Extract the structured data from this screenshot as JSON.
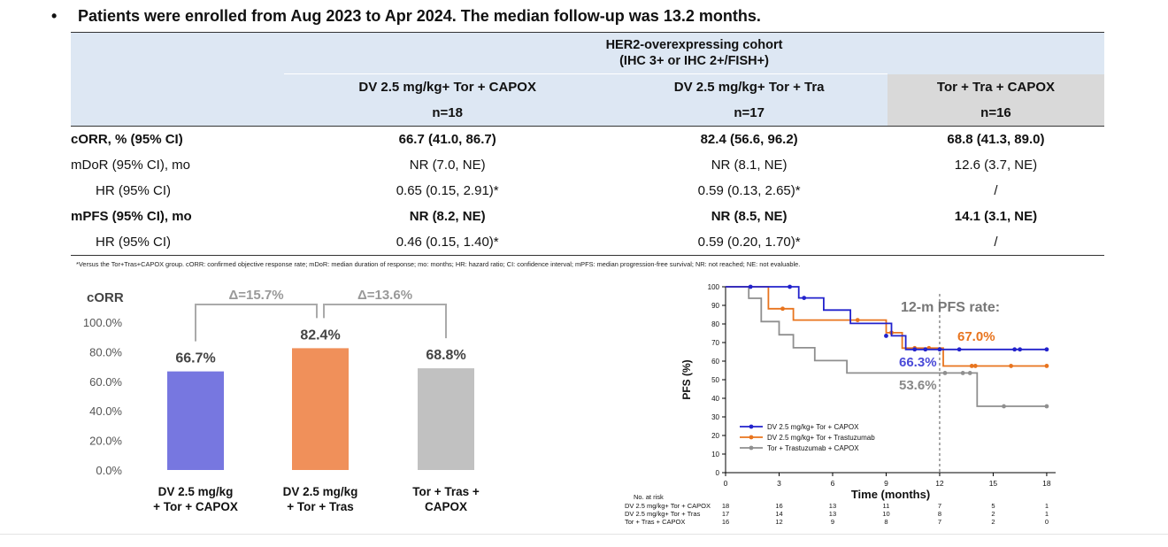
{
  "headline": {
    "bullet": "•",
    "text": "Patients were enrolled from Aug 2023 to Apr 2024. The median follow-up was 13.2 months."
  },
  "table": {
    "cohort_line1": "HER2-overexpressing cohort",
    "cohort_line2": "(IHC 3+ or IHC 2+/FISH+)",
    "columns": [
      {
        "name": "DV 2.5 mg/kg+ Tor + CAPOX",
        "n": "n=18"
      },
      {
        "name": "DV 2.5 mg/kg+ Tor + Tra",
        "n": "n=17"
      },
      {
        "name": "Tor + Tra + CAPOX",
        "n": "n=16"
      }
    ],
    "rows": [
      {
        "label": "cORR, % (95% CI)",
        "values": [
          "66.7 (41.0, 86.7)",
          "82.4 (56.6, 96.2)",
          "68.8 (41.3, 89.0)"
        ]
      },
      {
        "label": "mDoR (95% CI), mo",
        "values": [
          "NR (7.0, NE)",
          "NR (8.1, NE)",
          "12.6 (3.7, NE)"
        ]
      },
      {
        "label": "HR (95% CI)",
        "values": [
          "0.65 (0.15, 2.91)*",
          "0.59 (0.13, 2.65)*",
          "/"
        ]
      },
      {
        "label": "mPFS (95% CI), mo",
        "values": [
          "NR (8.2, NE)",
          "NR (8.5, NE)",
          "14.1 (3.1, NE)"
        ]
      },
      {
        "label": "HR (95% CI)",
        "values": [
          "0.46 (0.15, 1.40)*",
          "0.59 (0.20, 1.70)*",
          "/"
        ]
      }
    ],
    "footnote": "*Versus the Tor+Tras+CAPOX group. cORR: confirmed objective response rate; mDoR: median duration of response; mo: months; HR: hazard ratio; CI: confidence interval; mPFS: median progression-free survival; NR: not reached; NE: not evaluable."
  },
  "chart_data": [
    {
      "type": "bar",
      "title": "cORR",
      "categories": [
        "DV 2.5 mg/kg + Tor + CAPOX",
        "DV 2.5 mg/kg + Tor + Tras",
        "Tor + Tras + CAPOX"
      ],
      "category_lines": [
        [
          "DV 2.5 mg/kg",
          "+ Tor + CAPOX"
        ],
        [
          "DV 2.5 mg/kg",
          "+ Tor + Tras"
        ],
        [
          "Tor + Tras +",
          "CAPOX"
        ]
      ],
      "values": [
        66.7,
        82.4,
        68.8
      ],
      "value_labels": [
        "66.7%",
        "82.4%",
        "68.8%"
      ],
      "colors": [
        "#7777e0",
        "#f0905a",
        "#c1c1c1"
      ],
      "ylim": [
        0,
        100
      ],
      "yticks": [
        0,
        20,
        40,
        60,
        80,
        100
      ],
      "ytick_labels": [
        "0.0%",
        "20.0%",
        "40.0%",
        "60.0%",
        "80.0%",
        "100.0%"
      ],
      "deltas": [
        {
          "label": "Δ=15.7%",
          "from": 0,
          "to": 1
        },
        {
          "label": "Δ=13.6%",
          "from": 1,
          "to": 2
        }
      ],
      "bracket_color": "#aaaaaa",
      "delta_color": "#999999"
    },
    {
      "type": "line",
      "subtype": "kaplan-meier",
      "xlabel": "Time (months)",
      "ylabel": "PFS (%)",
      "xlim": [
        0,
        18.5
      ],
      "ylim": [
        0,
        100
      ],
      "xticks": [
        0,
        3,
        6,
        9,
        12,
        15,
        18
      ],
      "yticks": [
        0,
        10,
        20,
        30,
        40,
        50,
        60,
        70,
        80,
        90,
        100
      ],
      "reference_x": 12,
      "rate_title": "12-m PFS rate:",
      "series": [
        {
          "name": "DV 2.5 mg/kg+ Tor + CAPOX",
          "color": "#2222cc",
          "steps": [
            [
              0,
              100
            ],
            [
              4.1,
              100
            ],
            [
              4.1,
              94
            ],
            [
              5.5,
              94
            ],
            [
              5.5,
              87.5
            ],
            [
              7,
              87.5
            ],
            [
              7,
              80.3
            ],
            [
              9.3,
              80.3
            ],
            [
              9.3,
              73.6
            ],
            [
              10.1,
              73.6
            ],
            [
              10.1,
              66.3
            ],
            [
              18,
              66.3
            ]
          ],
          "censors": [
            [
              1.4,
              100
            ],
            [
              3.6,
              100
            ],
            [
              4.4,
              94
            ],
            [
              9.0,
              73.6
            ],
            [
              10.6,
              66.3
            ],
            [
              11.2,
              66.3
            ],
            [
              12.0,
              66.3
            ],
            [
              13.1,
              66.3
            ],
            [
              16.2,
              66.3
            ],
            [
              16.5,
              66.3
            ],
            [
              18.0,
              66.3
            ]
          ],
          "rate_label": "66.3%"
        },
        {
          "name": "DV 2.5 mg/kg+ Tor + Trastuzumab",
          "color": "#e8741e",
          "steps": [
            [
              0,
              100
            ],
            [
              2.4,
              100
            ],
            [
              2.4,
              88.2
            ],
            [
              3.8,
              88.2
            ],
            [
              3.8,
              82.1
            ],
            [
              9,
              82.1
            ],
            [
              9,
              75.3
            ],
            [
              9.9,
              75.3
            ],
            [
              9.9,
              67
            ],
            [
              12.2,
              67
            ],
            [
              12.2,
              57.4
            ],
            [
              18,
              57.4
            ]
          ],
          "censors": [
            [
              3.2,
              88.2
            ],
            [
              7.4,
              82.1
            ],
            [
              9.3,
              75.3
            ],
            [
              10.6,
              67
            ],
            [
              11.4,
              67
            ],
            [
              13.8,
              57.4
            ],
            [
              14.0,
              57.4
            ],
            [
              16.0,
              57.4
            ],
            [
              18.0,
              57.4
            ]
          ],
          "rate_label": "67.0%"
        },
        {
          "name": "Tor + Trastuzumab + CAPOX",
          "color": "#8f8f8f",
          "steps": [
            [
              0,
              100
            ],
            [
              1.3,
              100
            ],
            [
              1.3,
              93.8
            ],
            [
              2.0,
              93.8
            ],
            [
              2.0,
              81.3
            ],
            [
              3.0,
              81.3
            ],
            [
              3.0,
              74.2
            ],
            [
              3.8,
              74.2
            ],
            [
              3.8,
              67.2
            ],
            [
              5.0,
              67.2
            ],
            [
              5.0,
              60.3
            ],
            [
              6.8,
              60.3
            ],
            [
              6.8,
              53.6
            ],
            [
              14.1,
              53.6
            ],
            [
              14.1,
              35.7
            ],
            [
              18,
              35.7
            ]
          ],
          "censors": [
            [
              12.3,
              53.6
            ],
            [
              13.3,
              53.6
            ],
            [
              13.7,
              53.6
            ],
            [
              15.6,
              35.7
            ],
            [
              18.0,
              35.7
            ]
          ],
          "rate_label": "53.6%"
        }
      ],
      "at_risk": {
        "title": "No. at risk",
        "times": [
          0,
          3,
          6,
          9,
          12,
          15,
          18
        ],
        "rows": [
          {
            "label": "DV 2.5 mg/kg+ Tor + CAPOX",
            "counts": [
              "18",
              "16",
              "13",
              "11",
              "7",
              "5",
              "1"
            ]
          },
          {
            "label": "DV 2.5 mg/kg+ Tor + Tras",
            "counts": [
              "17",
              "14",
              "13",
              "10",
              "8",
              "2",
              "1"
            ]
          },
          {
            "label": "Tor + Tras + CAPOX",
            "counts": [
              "16",
              "12",
              "9",
              "8",
              "7",
              "2",
              "0"
            ]
          }
        ]
      }
    }
  ]
}
